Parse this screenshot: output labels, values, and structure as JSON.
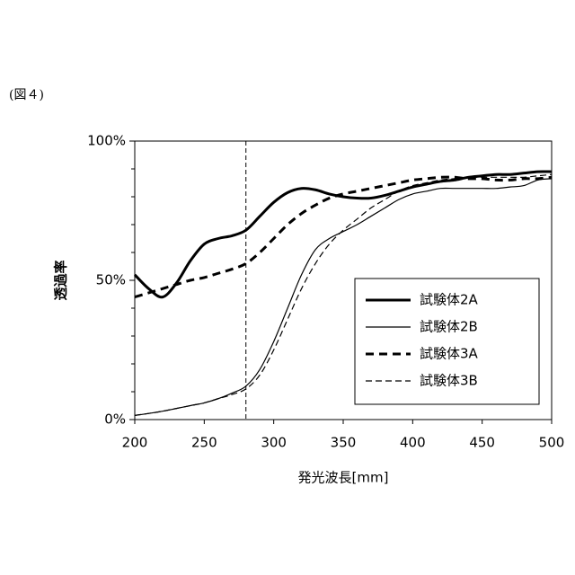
{
  "chart_data": {
    "type": "line",
    "annotation": "(図４)",
    "xlabel": "発光波長[mm]",
    "ylabel": "透過率",
    "x": [
      200,
      210,
      220,
      230,
      240,
      250,
      260,
      270,
      280,
      290,
      300,
      310,
      320,
      330,
      340,
      350,
      360,
      370,
      380,
      390,
      400,
      410,
      420,
      430,
      440,
      450,
      460,
      470,
      480,
      490,
      500
    ],
    "series": [
      {
        "name": "試験体2A",
        "color": "#000000",
        "width": 3,
        "dash": "none",
        "values": [
          52,
          47,
          44,
          49,
          57,
          63,
          65,
          66,
          68,
          73,
          78,
          81.5,
          83,
          82.5,
          81,
          80,
          79.5,
          79.5,
          80.5,
          82,
          83.5,
          84.5,
          85.5,
          86,
          87,
          87.5,
          88,
          88,
          88.5,
          89,
          89
        ]
      },
      {
        "name": "試験体2B",
        "color": "#000000",
        "width": 1.2,
        "dash": "none",
        "values": [
          1.5,
          2.2,
          3,
          4,
          5,
          6,
          7.5,
          9.5,
          12,
          18,
          28,
          40,
          52,
          61,
          65,
          67.5,
          70,
          73,
          76,
          79,
          81,
          82,
          83,
          83,
          83,
          83,
          83,
          83.5,
          84,
          86,
          86.5
        ]
      },
      {
        "name": "試験体3A",
        "color": "#000000",
        "width": 3,
        "dash": "9 6",
        "values": [
          44,
          45.5,
          47,
          48.5,
          50,
          51,
          52.5,
          54,
          56,
          60,
          65,
          70,
          74,
          77,
          79.5,
          81,
          82,
          83,
          84,
          85,
          86,
          86.5,
          87,
          87,
          86.5,
          86.5,
          86,
          86,
          86.5,
          86.5,
          87
        ]
      },
      {
        "name": "試験体3B",
        "color": "#000000",
        "width": 1.2,
        "dash": "7 4",
        "values": [
          1.5,
          2.2,
          3,
          4,
          5,
          6,
          7.5,
          9,
          11,
          16,
          25,
          36,
          47,
          56,
          63,
          68,
          72,
          76,
          79,
          82,
          84,
          85,
          86,
          86.5,
          87,
          87,
          87,
          87,
          87,
          87.5,
          88
        ]
      }
    ],
    "vline": 280,
    "xlim": [
      200,
      500
    ],
    "xticks": [
      200,
      250,
      300,
      350,
      400,
      450,
      500
    ],
    "ylim": [
      0,
      100
    ],
    "yticks": [
      {
        "value": 0,
        "label": "0%"
      },
      {
        "value": 50,
        "label": "50%"
      },
      {
        "value": 100,
        "label": "100%"
      }
    ],
    "yticks_minor": [
      10,
      20,
      30,
      40,
      60,
      70,
      80,
      90
    ],
    "legend": "lower right"
  }
}
